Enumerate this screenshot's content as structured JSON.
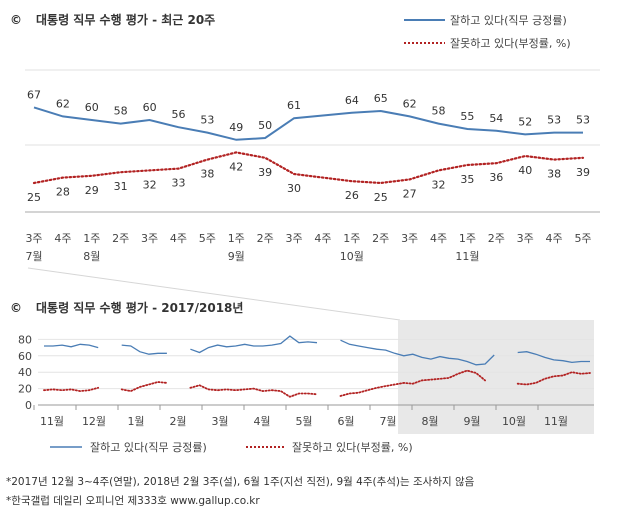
{
  "chart_data": [
    {
      "type": "line",
      "title": "대통령 직무 수행 평가 - 최근 20주",
      "title_marker": "©",
      "legend_position": "top-right",
      "categories": [
        "3주\n7월",
        "4주",
        "1주\n8월",
        "2주",
        "3주",
        "4주",
        "5주",
        "1주\n9월",
        "2주",
        "3주",
        "4주",
        "1주\n10월",
        "2주",
        "3주",
        "4주",
        "1주\n11월",
        "2주",
        "3주",
        "4주",
        "5주"
      ],
      "series": [
        {
          "name": "잘하고 있다(직무 긍정률)",
          "color": "#4a7db5",
          "style": "solid",
          "values": [
            67,
            62,
            60,
            58,
            60,
            56,
            53,
            49,
            50,
            61,
            null,
            64,
            65,
            62,
            58,
            55,
            54,
            52,
            53,
            53
          ]
        },
        {
          "name": "잘못하고 있다(부정률, %)",
          "color": "#b22222",
          "style": "dotted",
          "values": [
            25,
            28,
            29,
            31,
            32,
            33,
            38,
            42,
            39,
            30,
            null,
            26,
            25,
            27,
            32,
            35,
            36,
            40,
            38,
            39
          ]
        }
      ]
    },
    {
      "type": "line",
      "title": "대통령 직무 수행 평가 - 2017/2018년",
      "title_marker": "©",
      "legend_position": "bottom",
      "ylim": [
        0,
        80
      ],
      "yticks": [
        0,
        20,
        40,
        60,
        80
      ],
      "month_labels": [
        "11월",
        "12월",
        "1월",
        "2월",
        "3월",
        "4월",
        "5월",
        "6월",
        "7월",
        "8월",
        "9월",
        "10월",
        "11월"
      ],
      "shaded_region": "최근 20주",
      "series": [
        {
          "name": "잘하고 있다(직무 긍정률)",
          "color": "#4a7db5",
          "style": "solid",
          "segments": [
            [
              72,
              72,
              73,
              71,
              74,
              73,
              70
            ],
            [
              73,
              72,
              65,
              62,
              63,
              63
            ],
            [
              68,
              64,
              70,
              73,
              71,
              72,
              74,
              72,
              72,
              73,
              75,
              84,
              76,
              77,
              76
            ],
            [
              79,
              74,
              72,
              70,
              68,
              67,
              63,
              60,
              62,
              58,
              56,
              59,
              57,
              56,
              53,
              49,
              50,
              61
            ],
            [
              64,
              65,
              62,
              58,
              55,
              54,
              52,
              53,
              53
            ]
          ]
        },
        {
          "name": "잘못하고 있다(부정률, %)",
          "color": "#b22222",
          "style": "dotted",
          "segments": [
            [
              18,
              19,
              18,
              19,
              17,
              18,
              21
            ],
            [
              19,
              17,
              22,
              25,
              28,
              27
            ],
            [
              21,
              24,
              19,
              18,
              19,
              18,
              19,
              20,
              17,
              18,
              17,
              10,
              14,
              14,
              13
            ],
            [
              11,
              14,
              15,
              18,
              21,
              23,
              25,
              27,
              26,
              30,
              31,
              32,
              33,
              38,
              42,
              39,
              30
            ],
            [
              26,
              25,
              27,
              32,
              35,
              36,
              40,
              38,
              39
            ]
          ]
        }
      ]
    }
  ],
  "footnotes": [
    "*2017년 12월 3~4주(연말), 2018년 2월 3주(설), 6월 1주(지선 직전), 9월 4주(추석)는 조사하지 않음",
    "*한국갤럽 데일리 오피니언 제333호 www.gallup.co.kr"
  ]
}
